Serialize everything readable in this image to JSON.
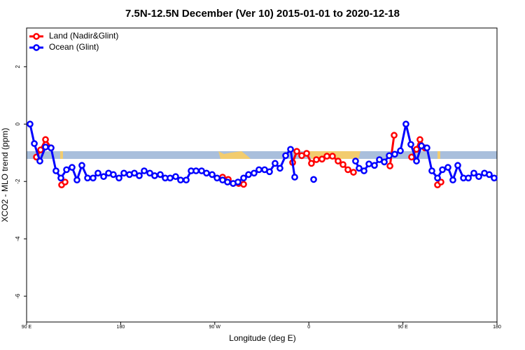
{
  "chart_data": {
    "type": "line",
    "title": "7.5N-12.5N December (Ver 10)   2015-01-01 to 2020-12-18",
    "x_label": "Longitude (deg E)",
    "y_label": "XCO2 - MLO trend (ppm)",
    "xlim": [
      90,
      540
    ],
    "ylim": [
      -6.9,
      3.35
    ],
    "xticks": [
      {
        "value": 90,
        "label": "90 E"
      },
      180,
      {
        "value": 270,
        "label": "90 W"
      },
      {
        "value": 360,
        "label": "0"
      },
      {
        "value": 450,
        "label": "90 E"
      },
      {
        "value": 540,
        "label": "180"
      }
    ],
    "yticks": [
      -6,
      -4,
      -2,
      0,
      2
    ],
    "legend": "top-left",
    "series": [
      {
        "name": "Land (Nadir&Glint)",
        "color": "#ff0000",
        "x": [
          99.4,
          103.4,
          108.1,
          113.4,
          null,
          123.5,
          126.8,
          null,
          277.5,
          282.9,
          287.6,
          292.9,
          297.6,
          null,
          344.5,
          348.5,
          353.2,
          357.9,
          362.5,
          367.2,
          372.6,
          377.3,
          382.6,
          388.0,
          392.7,
          397.4,
          402.7,
          null,
          437.6,
          441.6,
          null,
          458.3,
          463.0,
          466.3,
          471.0,
          null,
          483.1,
          486.4
        ],
        "values": [
          -1.15,
          -0.9,
          -0.54,
          -0.83,
          null,
          -2.12,
          -2.02,
          null,
          -1.85,
          -1.93,
          -2.07,
          -2.07,
          -2.1,
          null,
          -1.34,
          -0.95,
          -1.1,
          -1.02,
          -1.37,
          -1.24,
          -1.22,
          -1.12,
          -1.12,
          -1.29,
          -1.41,
          -1.59,
          -1.68,
          null,
          -1.46,
          -0.39,
          null,
          -1.15,
          -0.88,
          -0.54,
          -0.83,
          null,
          -2.12,
          -2.02
        ]
      },
      {
        "name": "Ocean (Glint)",
        "color": "#0000ff",
        "x": [
          93.3,
          97.4,
          102.7,
          108.1,
          113.4,
          118.1,
          122.8,
          128.2,
          133.5,
          138.2,
          142.9,
          148.3,
          153.6,
          158.3,
          163.7,
          168.4,
          173.0,
          178.4,
          183.1,
          188.4,
          193.1,
          197.8,
          202.5,
          207.9,
          212.5,
          217.9,
          222.6,
          227.3,
          232.6,
          237.3,
          242.7,
          247.4,
          252.1,
          257.4,
          262.1,
          267.5,
          272.2,
          277.5,
          282.2,
          287.6,
          292.2,
          297.6,
          302.3,
          307.6,
          312.3,
          317.7,
          322.4,
          327.7,
          332.4,
          337.8,
          342.5,
          346.5,
          null,
          364.6,
          null,
          404.7,
          408.1,
          412.8,
          417.5,
          422.8,
          427.5,
          432.2,
          436.9,
          442.2,
          447.6,
          452.9,
          457.6,
          463.0,
          467.7,
          473.0,
          477.7,
          483.1,
          487.8,
          493.1,
          497.8,
          502.5,
          507.9,
          512.6,
          517.9,
          522.6,
          528.0,
          532.6,
          537.3
        ],
        "values": [
          0.0,
          -0.68,
          -1.29,
          -0.8,
          -0.83,
          -1.63,
          -1.88,
          -1.59,
          -1.51,
          -1.95,
          -1.44,
          -1.88,
          -1.88,
          -1.71,
          -1.83,
          -1.71,
          -1.76,
          -1.88,
          -1.71,
          -1.76,
          -1.71,
          -1.8,
          -1.63,
          -1.71,
          -1.8,
          -1.76,
          -1.88,
          -1.88,
          -1.83,
          -1.95,
          -1.95,
          -1.63,
          -1.63,
          -1.63,
          -1.71,
          -1.76,
          -1.88,
          -1.95,
          -2.02,
          -2.07,
          -2.02,
          -1.88,
          -1.76,
          -1.71,
          -1.59,
          -1.59,
          -1.66,
          -1.37,
          -1.54,
          -1.1,
          -0.88,
          -1.85,
          null,
          -1.93,
          null,
          -1.29,
          -1.54,
          -1.63,
          -1.39,
          -1.44,
          -1.24,
          -1.32,
          -1.1,
          -1.05,
          -0.93,
          0.0,
          -0.71,
          -1.29,
          -0.76,
          -0.83,
          -1.63,
          -1.88,
          -1.59,
          -1.51,
          -1.95,
          -1.44,
          -1.88,
          -1.88,
          -1.71,
          -1.83,
          -1.71,
          -1.76,
          -1.88
        ]
      }
    ]
  }
}
